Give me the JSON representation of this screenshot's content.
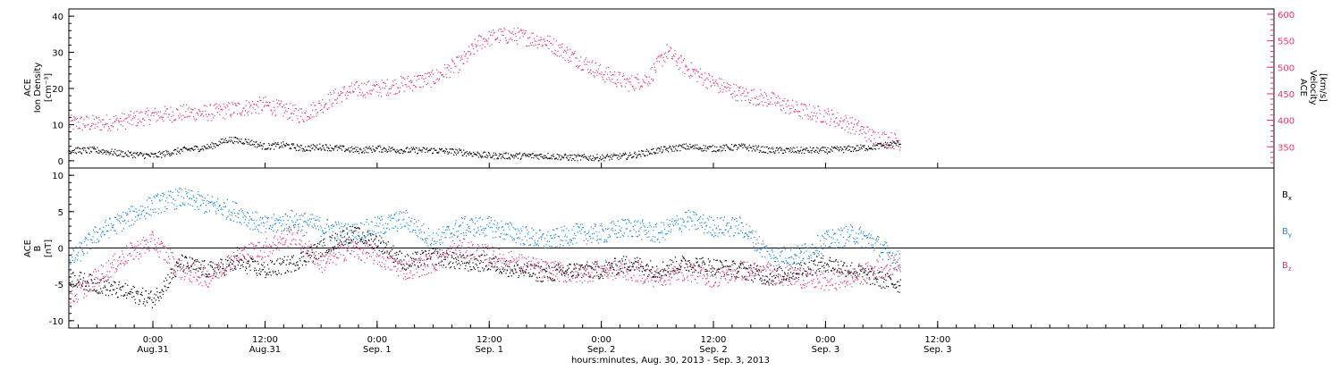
{
  "colors": {
    "density": "#000000",
    "velocity": "#e8356a",
    "bx": "#000000",
    "by": "#1f87e0",
    "bz": "#e8356a",
    "frame": "#000000"
  },
  "x_axis": {
    "title": "hours:minutes, Aug. 30, 2013 - Sep.  3, 2013",
    "range_hours": [
      -9,
      120
    ],
    "tick_hours": [
      0,
      12,
      24,
      36,
      48,
      60,
      72,
      84
    ],
    "tick_time": [
      "0:00",
      "12:00",
      "0:00",
      "12:00",
      "0:00",
      "12:00",
      "0:00",
      "12:00"
    ],
    "tick_date": [
      "Aug.31",
      "Aug.31",
      "Sep. 1",
      "Sep. 1",
      "Sep. 2",
      "Sep. 2",
      "Sep. 3",
      "Sep. 3"
    ]
  },
  "chart_data": [
    {
      "type": "scatter",
      "panel": "top",
      "left_axis": {
        "label_lines": [
          "ACE",
          "Ion Density",
          "[cm⁻³]"
        ],
        "ylim": [
          -2,
          42
        ],
        "ticks": [
          0,
          10,
          20,
          30,
          40
        ]
      },
      "right_axis": {
        "label_lines": [
          "ACE",
          "Velocity",
          "[km/s]"
        ],
        "ylim": [
          310,
          610
        ],
        "ticks": [
          350,
          400,
          450,
          500,
          550,
          600
        ]
      },
      "series": [
        {
          "axis": "left",
          "color": "density",
          "x": [
            -9,
            -6,
            -3,
            0,
            3,
            6,
            8,
            10,
            12,
            14,
            16,
            18,
            20,
            22,
            24,
            27,
            30,
            33,
            36,
            39,
            42,
            45,
            48,
            51,
            54,
            57,
            60,
            63,
            66,
            69,
            72,
            75,
            77,
            80
          ],
          "y": [
            3,
            3,
            2,
            1.5,
            3,
            4,
            6,
            5.5,
            4,
            4.5,
            3.5,
            4,
            3.5,
            3,
            3.5,
            3,
            3,
            2.5,
            1.5,
            1.5,
            1.5,
            1,
            1,
            1.5,
            3,
            4,
            3.5,
            4,
            3,
            3,
            3,
            3.5,
            4,
            5
          ]
        },
        {
          "axis": "right",
          "color": "velocity",
          "x": [
            -9,
            -6,
            -3,
            0,
            3,
            6,
            8,
            10,
            12,
            14,
            16,
            18,
            20,
            22,
            24,
            27,
            30,
            33,
            35,
            37,
            39,
            42,
            45,
            48,
            51,
            53,
            55,
            57,
            60,
            63,
            66,
            69,
            72,
            75,
            77,
            80
          ],
          "y": [
            395,
            395,
            400,
            410,
            415,
            415,
            420,
            425,
            430,
            420,
            410,
            430,
            450,
            460,
            460,
            470,
            480,
            510,
            550,
            560,
            560,
            550,
            520,
            490,
            470,
            480,
            530,
            500,
            470,
            450,
            440,
            420,
            410,
            390,
            370,
            360
          ]
        }
      ]
    },
    {
      "type": "scatter",
      "panel": "bottom",
      "left_axis": {
        "label_lines": [
          "ACE",
          "B",
          "[nT]"
        ],
        "ylim": [
          -11,
          11
        ],
        "ticks": [
          -10,
          -5,
          0,
          5,
          10
        ]
      },
      "legend": [
        "Bx",
        "By",
        "Bz"
      ],
      "legend_position": "right",
      "zero_line": true,
      "series": [
        {
          "name": "Bx",
          "color": "bx",
          "x": [
            -9,
            -6,
            -3,
            0,
            3,
            6,
            9,
            12,
            15,
            18,
            21,
            24,
            27,
            30,
            33,
            36,
            39,
            42,
            45,
            48,
            51,
            54,
            57,
            60,
            63,
            66,
            69,
            72,
            75,
            77,
            80
          ],
          "y": [
            -4,
            -5,
            -6,
            -7,
            -2,
            -3,
            -2,
            -3,
            -2,
            0,
            2,
            1,
            -2,
            -1,
            -2,
            -2,
            -3,
            -3.5,
            -3,
            -3,
            -2,
            -3,
            -2,
            -2.5,
            -3,
            -4,
            -3,
            -2,
            -3,
            -4,
            -5
          ]
        },
        {
          "name": "By",
          "color": "by",
          "x": [
            -9,
            -6,
            -3,
            0,
            3,
            6,
            9,
            12,
            15,
            18,
            21,
            24,
            27,
            30,
            33,
            36,
            39,
            42,
            45,
            48,
            51,
            54,
            57,
            60,
            63,
            66,
            69,
            72,
            75,
            77,
            80
          ],
          "y": [
            -2,
            2,
            4,
            6,
            7,
            6,
            5,
            3,
            4,
            3,
            2,
            3,
            4,
            1,
            3,
            3,
            2,
            1,
            2,
            2,
            3,
            2,
            4,
            3,
            3,
            -1,
            -1,
            1,
            2,
            1,
            -2
          ]
        },
        {
          "name": "Bz",
          "color": "bz",
          "x": [
            -9,
            -6,
            -3,
            0,
            3,
            6,
            9,
            12,
            15,
            18,
            21,
            24,
            27,
            30,
            33,
            36,
            39,
            42,
            45,
            48,
            51,
            54,
            57,
            60,
            63,
            66,
            69,
            72,
            75,
            77,
            80
          ],
          "y": [
            -7,
            -4,
            -1,
            1,
            -3,
            -4,
            -1,
            0,
            2,
            -2,
            0,
            -1,
            -3,
            -2,
            0,
            -1,
            -2,
            -3,
            -3.5,
            -3,
            -3,
            -4,
            -3,
            -4,
            -3,
            -3.5,
            -4,
            -4.5,
            -4,
            -3,
            -2
          ]
        }
      ]
    }
  ]
}
